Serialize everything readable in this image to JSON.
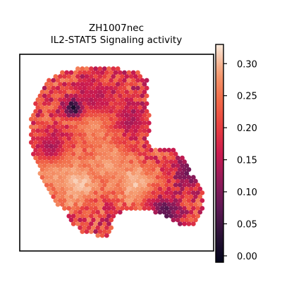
{
  "chart_data": {
    "type": "heatmap",
    "subtype": "spatial-hexbin",
    "title_line1": "ZH1007nec",
    "title_line2": "IL2-STAT5 Signaling activity",
    "colorbar": {
      "colormap": "rocket",
      "vmin": -0.01,
      "vmax": 0.33,
      "ticks": [
        0.0,
        0.05,
        0.1,
        0.15,
        0.2,
        0.25,
        0.3
      ],
      "tick_labels": [
        "0.00",
        "0.05",
        "0.10",
        "0.15",
        "0.20",
        "0.25",
        "0.30"
      ]
    },
    "colors": {
      "low": "#03051a",
      "mid": "#cb1b4f",
      "high": "#f8ceb2"
    },
    "axes": {
      "xticks": false,
      "yticks": false,
      "grid": false
    },
    "hotspots_low": [
      {
        "x": 0.28,
        "y": 0.27,
        "value": -0.01
      },
      {
        "x": 0.58,
        "y": 0.33,
        "value": 0.12
      },
      {
        "x": 0.75,
        "y": 0.8,
        "value": 0.06
      },
      {
        "x": 0.16,
        "y": 0.47,
        "value": 0.12
      },
      {
        "x": 0.4,
        "y": 0.22,
        "value": 0.13
      },
      {
        "x": 0.88,
        "y": 0.59,
        "value": 0.07
      }
    ],
    "hotspots_high": [
      {
        "x": 0.3,
        "y": 0.66,
        "value": 0.31
      },
      {
        "x": 0.6,
        "y": 0.66,
        "value": 0.3
      },
      {
        "x": 0.18,
        "y": 0.58,
        "value": 0.29
      },
      {
        "x": 0.38,
        "y": 0.36,
        "value": 0.27
      },
      {
        "x": 0.46,
        "y": 0.55,
        "value": 0.28
      }
    ]
  }
}
